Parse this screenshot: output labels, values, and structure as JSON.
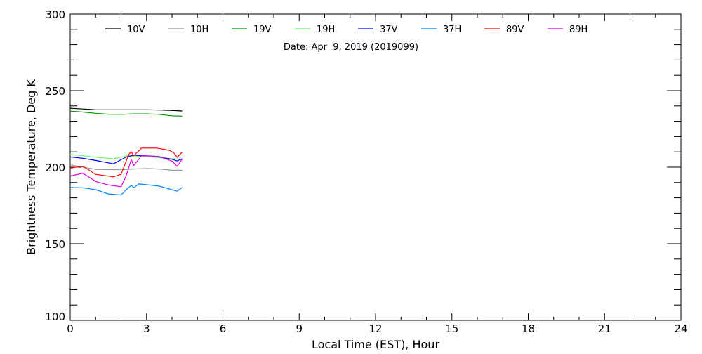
{
  "chart_data": {
    "type": "line",
    "title": "Date: Apr  9, 2019 (2019099)",
    "xlabel": "Local Time (EST), Hour",
    "ylabel": "Brightness Temperature, Deg K",
    "xlim": [
      0,
      24
    ],
    "ylim": [
      100,
      300
    ],
    "xticks": [
      "0",
      "3",
      "6",
      "9",
      "12",
      "15",
      "18",
      "21",
      "24"
    ],
    "yticks": [
      "100",
      "150",
      "200",
      "250",
      "300"
    ],
    "grid": false,
    "legend_position": "top",
    "series": [
      {
        "name": "10V",
        "color": "#000000",
        "x": [
          0,
          0.5,
          1,
          1.5,
          2,
          2.5,
          3,
          3.5,
          4,
          4.4
        ],
        "y": [
          238.5,
          238,
          237.5,
          237.5,
          237.5,
          237.5,
          237.5,
          237.3,
          237,
          236.7
        ]
      },
      {
        "name": "10H",
        "color": "#999999",
        "x": [
          0,
          0.5,
          1,
          1.5,
          2,
          2.5,
          3,
          3.5,
          4,
          4.4
        ],
        "y": [
          201.4,
          200,
          198.6,
          198.4,
          198.3,
          198.8,
          199.1,
          198.8,
          198,
          198
        ]
      },
      {
        "name": "19V",
        "color": "#009900",
        "x": [
          0,
          0.5,
          1,
          1.5,
          2,
          2.5,
          3,
          3.5,
          4,
          4.4
        ],
        "y": [
          236.6,
          236,
          235.2,
          234.6,
          234.5,
          234.8,
          234.8,
          234.5,
          233.6,
          233.3
        ]
      },
      {
        "name": "19H",
        "color": "#66ff66",
        "x": [
          0,
          0.5,
          1,
          1.7,
          2.25,
          2.9,
          3.6,
          4.4
        ],
        "y": [
          208.3,
          207.5,
          206.5,
          205.5,
          207.5,
          207,
          206,
          205.2
        ]
      },
      {
        "name": "37V",
        "color": "#0000ff",
        "x": [
          0,
          0.5,
          1,
          1.7,
          2.2,
          2.5,
          3.3,
          4,
          4.2,
          4.4
        ],
        "y": [
          206.7,
          205.8,
          204.4,
          202.2,
          206.7,
          207.8,
          207.2,
          205.2,
          204.1,
          205.5
        ]
      },
      {
        "name": "37H",
        "color": "#0088ff",
        "x": [
          0,
          0.5,
          1,
          1.5,
          2,
          2.2,
          2.4,
          2.5,
          2.7,
          3.5,
          4.2,
          4.4
        ],
        "y": [
          186.8,
          186.5,
          185.3,
          182.5,
          181.9,
          185.3,
          188.1,
          186.6,
          189.1,
          187.6,
          184.3,
          186.8
        ]
      },
      {
        "name": "89V",
        "color": "#ff0000",
        "x": [
          0,
          0.5,
          1,
          1.7,
          2,
          2.3,
          2.4,
          2.5,
          2.8,
          3.4,
          3.9,
          4.1,
          4.2,
          4.4
        ],
        "y": [
          199.4,
          200.6,
          195.3,
          193.7,
          195.3,
          208.3,
          210.1,
          207.5,
          212.5,
          212.5,
          211,
          209,
          206.4,
          209.8
        ]
      },
      {
        "name": "89H",
        "color": "#dd00dd",
        "x": [
          0,
          0.5,
          1,
          1.5,
          2,
          2.2,
          2.4,
          2.5,
          2.8,
          3.5,
          4,
          4.2,
          4.4
        ],
        "y": [
          194.2,
          196,
          190.7,
          188.4,
          187.2,
          194.5,
          204.9,
          201.1,
          207.5,
          207,
          204,
          200.6,
          205.2
        ]
      }
    ]
  }
}
